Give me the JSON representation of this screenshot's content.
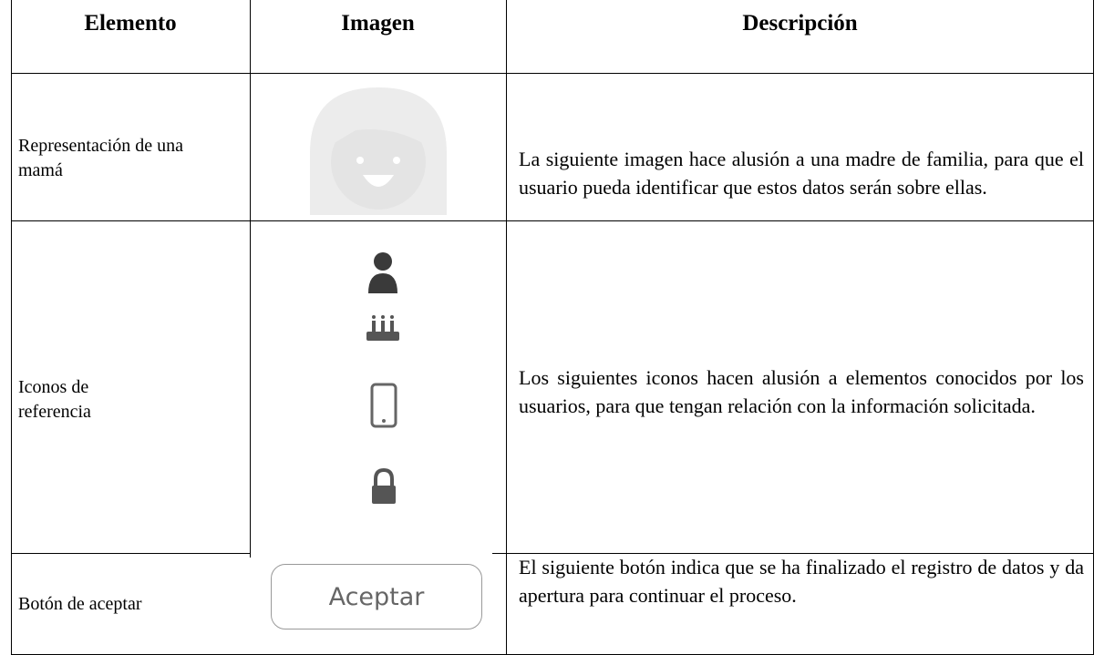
{
  "table": {
    "header": [
      "Elemento",
      "Imagen",
      "Descripción"
    ],
    "rows": [
      {
        "element": "Representación de una mamá",
        "description": "La siguiente imagen hace alusión a una madre de familia, para que el usuario pueda identificar que estos datos serán sobre ellas."
      },
      {
        "element": "Iconos de referencia",
        "description": "Los siguientes iconos hacen alusión a elementos conocidos por los usuarios, para que tengan relación con la información solicitada."
      },
      {
        "element": "Botón de aceptar",
        "button": "Aceptar",
        "description": "El siguiente botón indica que se ha finalizado el registro de datos y da apertura para continuar el proceso."
      }
    ]
  }
}
